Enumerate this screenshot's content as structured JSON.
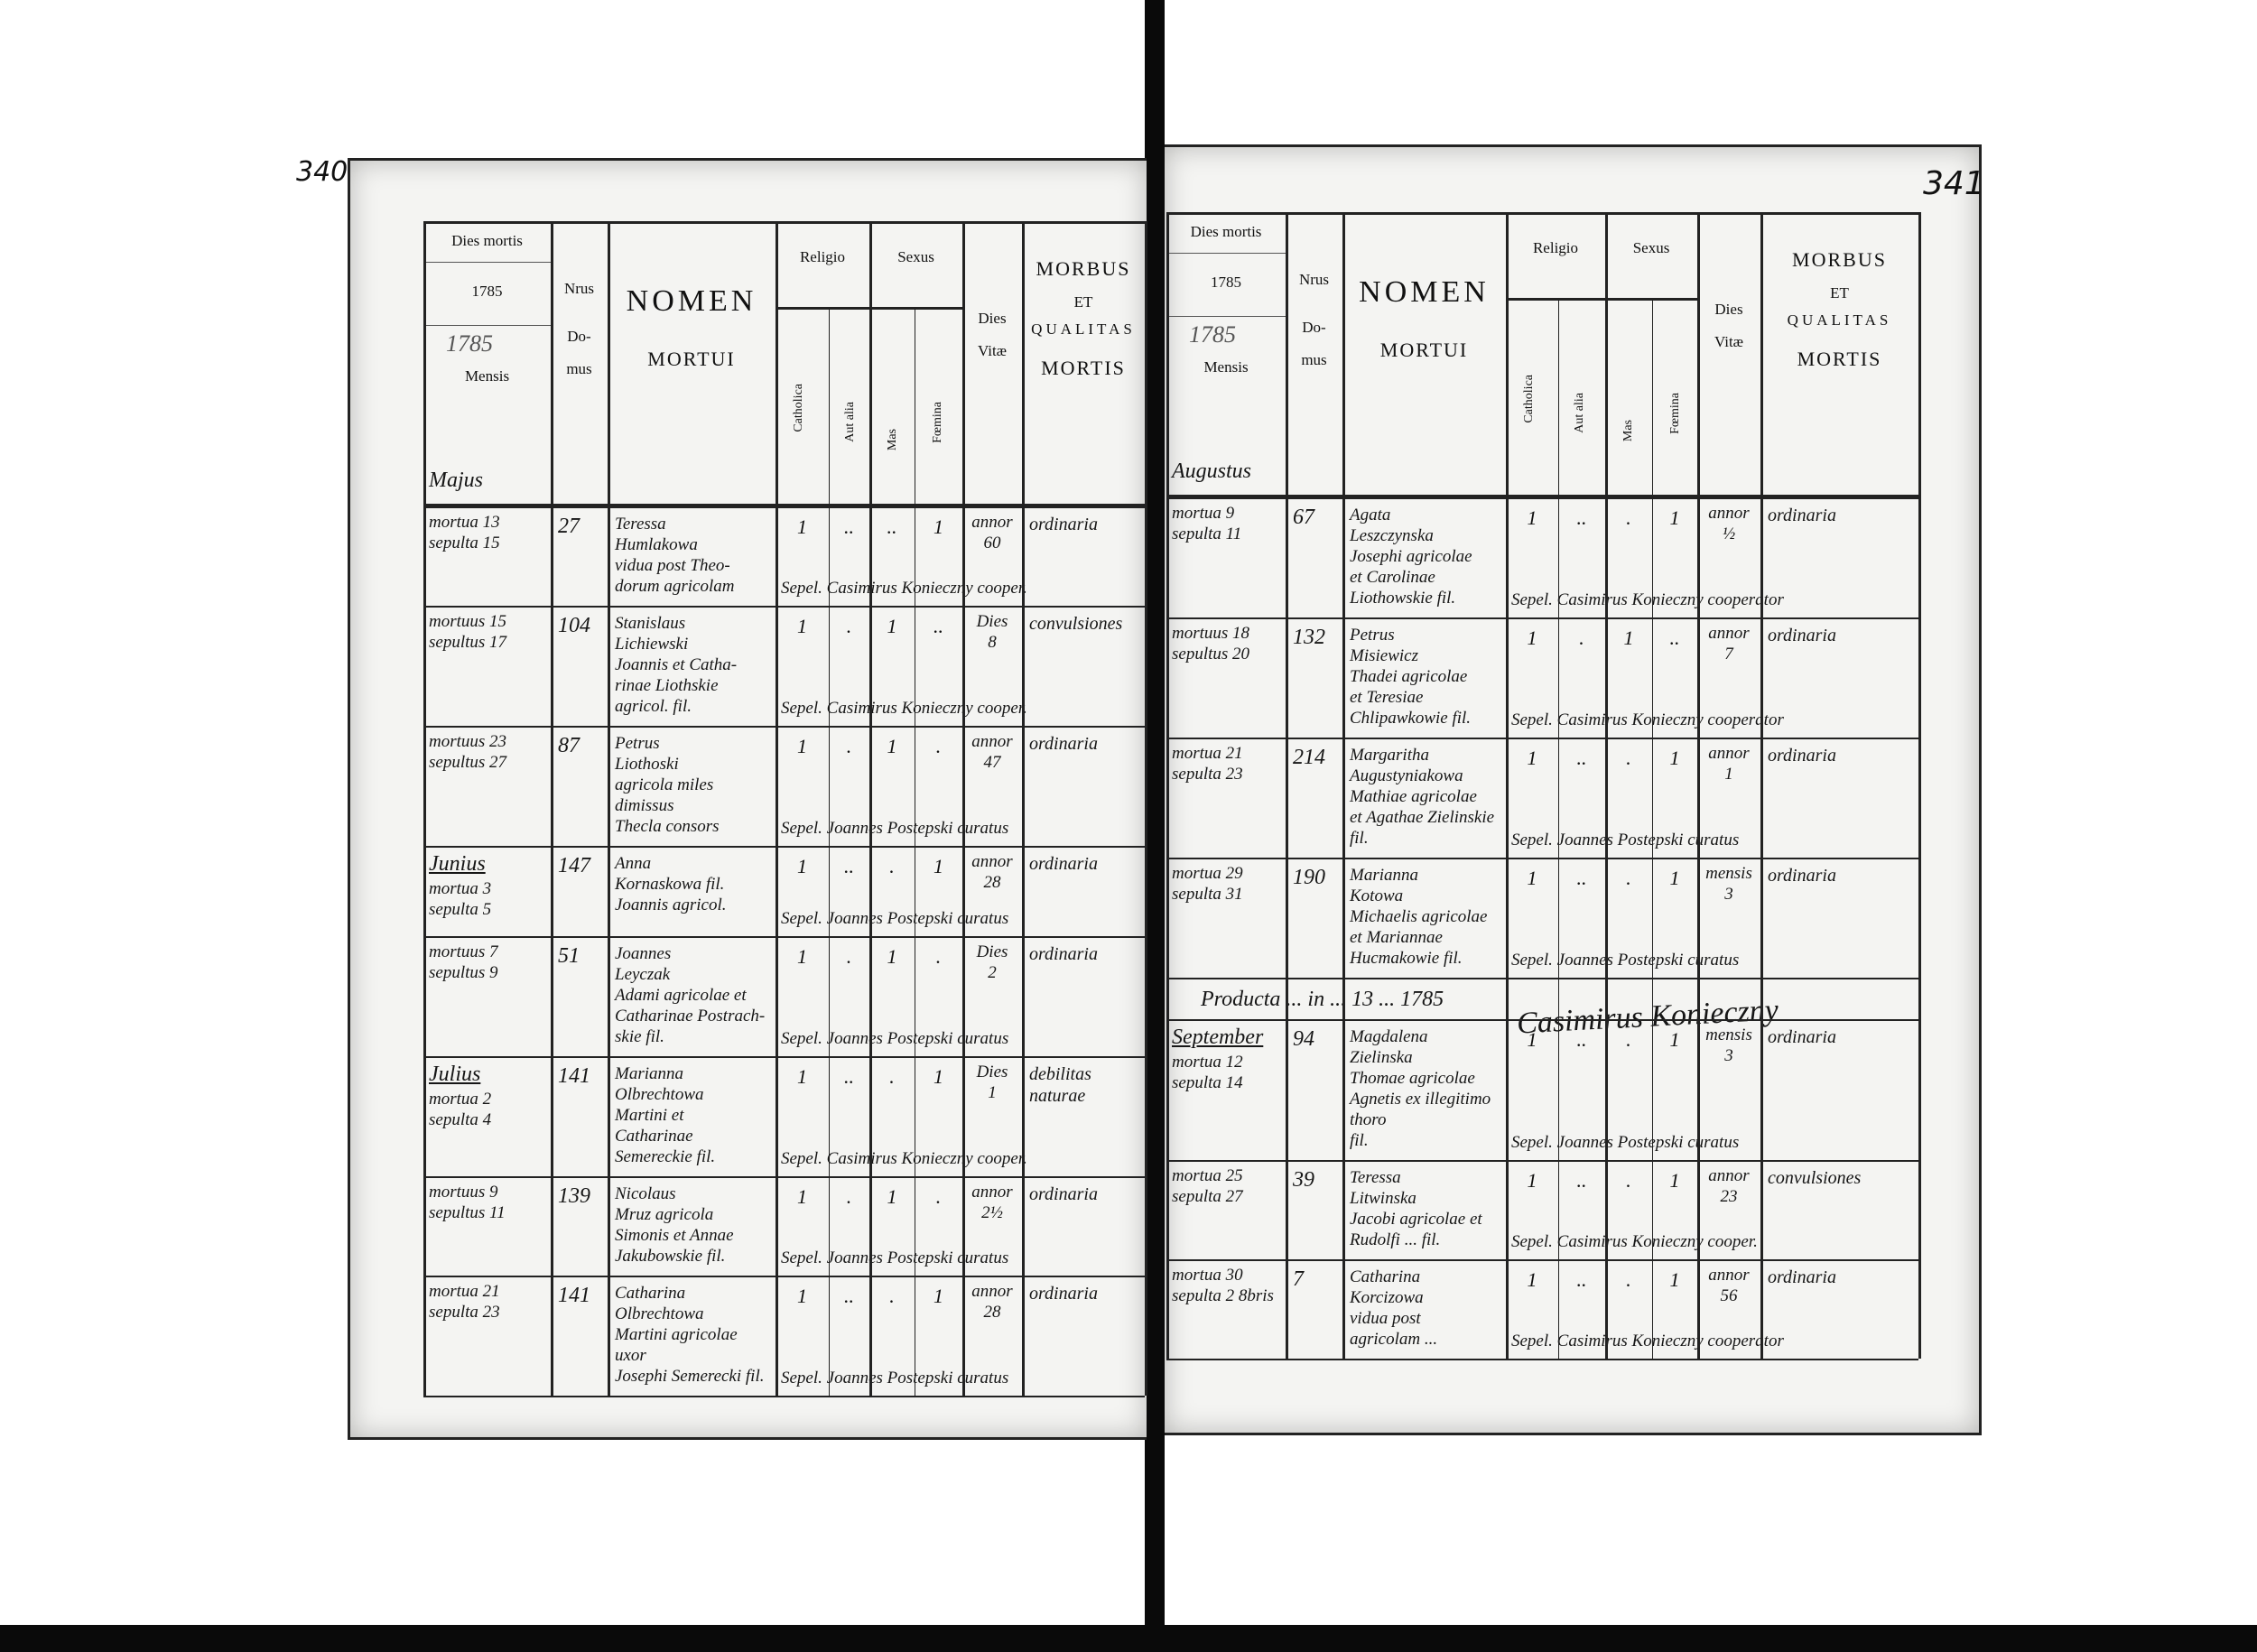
{
  "header": {
    "dies_mortis": "Dies mortis",
    "year_printed": "1785",
    "year_written": "1785",
    "mensis": "Mensis",
    "nrus": "Nrus",
    "domus": "Do-\nmus",
    "nomen": "NOMEN",
    "mortui": "MORTUI",
    "religio": "Religio",
    "catholica": "Catholica",
    "aut_alia": "Aut alia",
    "sexus": "Sexus",
    "mas": "Mas",
    "foemina": "Fœmina",
    "dies_vitae": "Dies\nVitæ",
    "morbus": "MORBUS",
    "et": "ET",
    "qualitas": "QUALITAS",
    "mortis": "MORTIS"
  },
  "left_page": {
    "page_number": "340",
    "month": "Majus",
    "entries": [
      {
        "date": "mortua 13\nsepulta 15",
        "house": "27",
        "name": "Teressa\nHumlakowa\nvidua post Theo-\ndorum agricolam",
        "cat": "1",
        "alia": "..",
        "mas": "..",
        "fem": "1",
        "age": "annor\n60",
        "cause": "ordinaria",
        "burial": "Sepel. Casimirus Konieczny cooper."
      },
      {
        "date": "mortuus 15\nsepultus 17",
        "house": "104",
        "name": "Stanislaus\nLichiewski\nJoannis et Catha-\nrinae Liothskie\nagricol. fil.",
        "cat": "1",
        "alia": ".",
        "mas": "1",
        "fem": "..",
        "age": "Dies\n8",
        "cause": "convulsiones",
        "burial": "Sepel. Casimirus Konieczny cooper."
      },
      {
        "date": "mortuus 23\nsepultus 27",
        "house": "87",
        "name": "Petrus\nLiothoski\nagricola miles\ndimissus\nThecla consors",
        "cat": "1",
        "alia": ".",
        "mas": "1",
        "fem": ".",
        "age": "annor\n47",
        "cause": "ordinaria",
        "burial": "Sepel. Joannes Postepski curatus"
      },
      {
        "month": "Junius",
        "date": "mortua 3\nsepulta 5",
        "house": "147",
        "name": "Anna\nKornaskowa fil.\nJoannis agricol.",
        "cat": "1",
        "alia": "..",
        "mas": ".",
        "fem": "1",
        "age": "annor\n28",
        "cause": "ordinaria",
        "burial": "Sepel. Joannes Postepski curatus"
      },
      {
        "date": "mortuus 7\nsepultus 9",
        "house": "51",
        "name": "Joannes\nLeyczak\nAdami agricolae et\nCatharinae Postrach-\nskie fil.",
        "cat": "1",
        "alia": ".",
        "mas": "1",
        "fem": ".",
        "age": "Dies\n2",
        "cause": "ordinaria",
        "burial": "Sepel. Joannes Postepski curatus"
      },
      {
        "month": "Julius",
        "date": "mortua 2\nsepulta 4",
        "house": "141",
        "name": "Marianna\nOlbrechtowa\nMartini et\nCatharinae\nSemereckie fil.",
        "cat": "1",
        "alia": "..",
        "mas": ".",
        "fem": "1",
        "age": "Dies\n1",
        "cause": "debilitas naturae",
        "burial": "Sepel. Casimirus Konieczny cooper."
      },
      {
        "date": "mortuus 9\nsepultus 11",
        "house": "139",
        "name": "Nicolaus\nMruz agricola\nSimonis et Annae\nJakubowskie fil.",
        "cat": "1",
        "alia": ".",
        "mas": "1",
        "fem": ".",
        "age": "annor\n2½",
        "cause": "ordinaria",
        "burial": "Sepel. Joannes Postepski curatus"
      },
      {
        "date": "mortua 21\nsepulta 23",
        "house": "141",
        "name": "Catharina\nOlbrechtowa\nMartini agricolae\nuxor\nJosephi Semerecki fil.",
        "cat": "1",
        "alia": "..",
        "mas": ".",
        "fem": "1",
        "age": "annor\n28",
        "cause": "ordinaria",
        "burial": "Sepel. Joannes Postepski curatus"
      }
    ]
  },
  "right_page": {
    "page_number": "341",
    "month": "Augustus",
    "note": "Producta ... in ... 13 ... 1785",
    "signature": "Casimirus Konieczny",
    "entries": [
      {
        "date": "mortua 9\nsepulta 11",
        "house": "67",
        "name": "Agata\nLeszczynska\nJosephi agricolae\net Carolinae\nLiothowskie fil.",
        "cat": "1",
        "alia": "..",
        "mas": ".",
        "fem": "1",
        "age": "annor\n½",
        "cause": "ordinaria",
        "burial": "Sepel. Casimirus Konieczny cooperator"
      },
      {
        "date": "mortuus 18\nsepultus 20",
        "house": "132",
        "name": "Petrus\nMisiewicz\nThadei agricolae\net Teresiae\nChlipawkowie fil.",
        "cat": "1",
        "alia": ".",
        "mas": "1",
        "fem": "..",
        "age": "annor\n7",
        "cause": "ordinaria",
        "burial": "Sepel. Casimirus Konieczny cooperator"
      },
      {
        "date": "mortua 21\nsepulta 23",
        "house": "214",
        "name": "Margaritha\nAugustyniakowa\nMathiae agricolae\net Agathae Zielinskie fil.",
        "cat": "1",
        "alia": "..",
        "mas": ".",
        "fem": "1",
        "age": "annor\n1",
        "cause": "ordinaria",
        "burial": "Sepel. Joannes Postepski curatus"
      },
      {
        "date": "mortua 29\nsepulta 31",
        "house": "190",
        "name": "Marianna\nKotowa\nMichaelis agricolae\net Mariannae\nHucmakowie fil.",
        "cat": "1",
        "alia": "..",
        "mas": ".",
        "fem": "1",
        "age": "mensis\n3",
        "cause": "ordinaria",
        "burial": "Sepel. Joannes Postepski curatus"
      },
      {
        "month": "September",
        "date": "mortua 12\nsepulta 14",
        "house": "94",
        "name": "Magdalena\nZielinska\nThomae agricolae\nAgnetis ex illegitimo thoro\nfil.",
        "cat": "1",
        "alia": "..",
        "mas": ".",
        "fem": "1",
        "age": "mensis\n3",
        "cause": "ordinaria",
        "burial": "Sepel. Joannes Postepski curatus"
      },
      {
        "date": "mortua 25\nsepulta 27",
        "house": "39",
        "name": "Teressa\nLitwinska\nJacobi agricolae et\nRudolfi ... fil.",
        "cat": "1",
        "alia": "..",
        "mas": ".",
        "fem": "1",
        "age": "annor\n23",
        "cause": "convulsiones",
        "burial": "Sepel. Casimirus Konieczny cooper."
      },
      {
        "date": "mortua 30\nsepulta 2 8bris",
        "house": "7",
        "name": "Catharina\nKorcizowa\nvidua post\nagricolam ...",
        "cat": "1",
        "alia": "..",
        "mas": ".",
        "fem": "1",
        "age": "annor\n56",
        "cause": "ordinaria",
        "burial": "Sepel. Casimirus Konieczny cooperator"
      }
    ]
  }
}
